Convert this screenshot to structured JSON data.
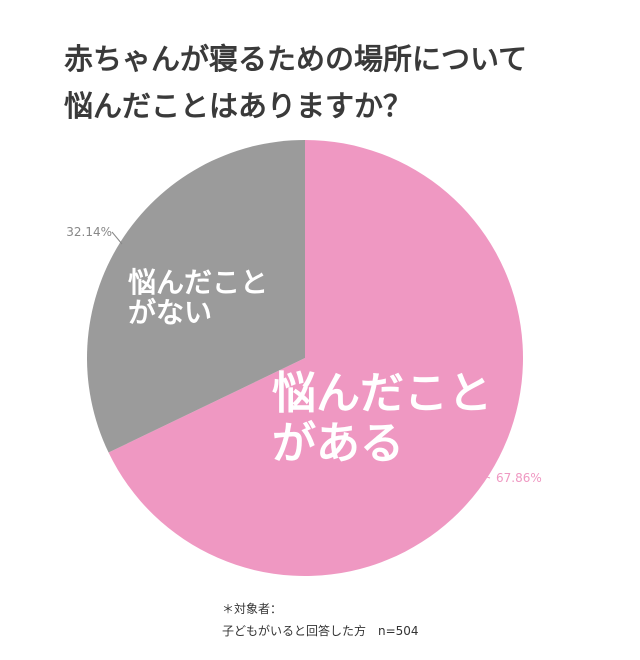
{
  "title": {
    "line1": "赤ちゃんが寝るための場所について",
    "line2": "悩んだことはありますか？"
  },
  "chart_data": {
    "type": "pie",
    "categories": [
      "悩んだことがある",
      "悩んだことがない"
    ],
    "values": [
      67.86,
      32.14
    ],
    "value_labels": [
      "67.86%",
      "32.14%"
    ],
    "slice_labels": [
      [
        "悩んだこと",
        "がある"
      ],
      [
        "悩んだこと",
        "がない"
      ]
    ],
    "colors": [
      "#ef98c2",
      "#9b9b9b"
    ],
    "value_label_colors": [
      "#ef98c2",
      "#888888"
    ],
    "start": "12 o'clock",
    "direction": "clockwise"
  },
  "note": {
    "line1": "＊対象者：",
    "line2": "子どもがいると回答した方　n=504"
  }
}
